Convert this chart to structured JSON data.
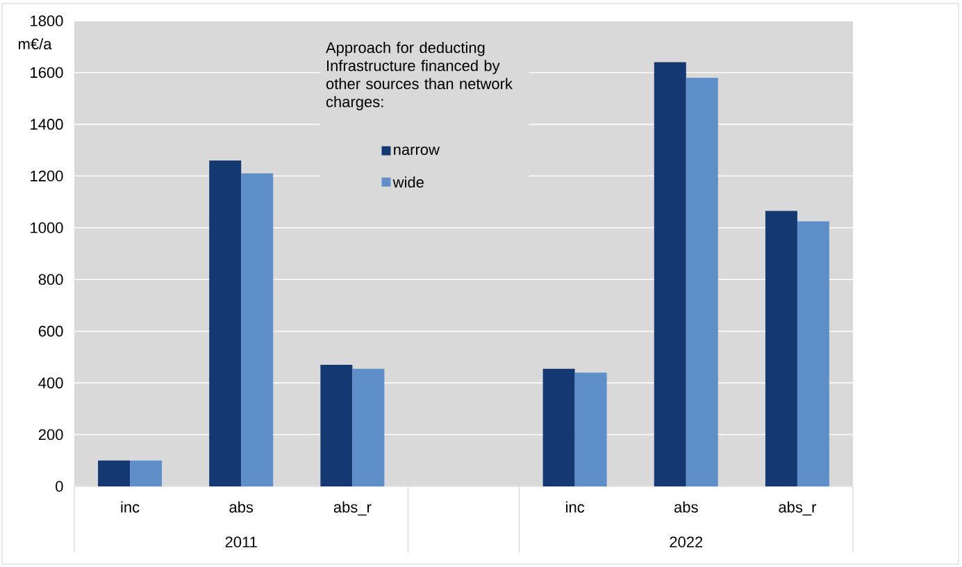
{
  "chart_data": {
    "type": "bar",
    "ylabel": "m€/a",
    "legend_title": "Approach for deducting Infrastructure financed by other sources than network charges:",
    "categories": [
      "inc",
      "abs",
      "abs_r",
      null,
      "inc",
      "abs",
      "abs_r"
    ],
    "series": [
      {
        "name": "narrow",
        "color": "#133872",
        "values": [
          100,
          1260,
          470,
          null,
          455,
          1640,
          1065
        ]
      },
      {
        "name": "wide",
        "color": "#5f8fc9",
        "values": [
          100,
          1210,
          455,
          null,
          440,
          1580,
          1025
        ]
      }
    ],
    "annotations": [
      "2011",
      "2022"
    ],
    "ylim": [
      0,
      1800
    ],
    "yticks": [
      0,
      200,
      400,
      600,
      800,
      1000,
      1200,
      1400,
      1600,
      1800
    ],
    "grid": "y",
    "legend": "top"
  }
}
